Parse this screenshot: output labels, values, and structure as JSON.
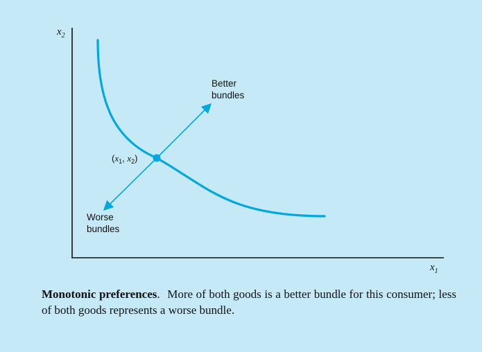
{
  "figure": {
    "y_axis_label": "x",
    "y_axis_sub": "2",
    "x_axis_label": "x",
    "x_axis_sub": "1",
    "better_label": [
      "Better",
      "bundles"
    ],
    "worse_label": [
      "Worse",
      "bundles"
    ],
    "point_label": {
      "open": "(",
      "x": "x",
      "x_sub": "1",
      "sep": ", ",
      "y": "x",
      "y_sub": "2",
      "close": ")"
    }
  },
  "caption": {
    "title": "Monotonic preferences",
    "title_suffix": ".",
    "text": "More of both goods is a better bundle for this consumer; less of both goods represents a worse bundle."
  },
  "colors": {
    "panel": "#c6e9f8",
    "curve": "#00a7e1",
    "axis": "#111111"
  }
}
